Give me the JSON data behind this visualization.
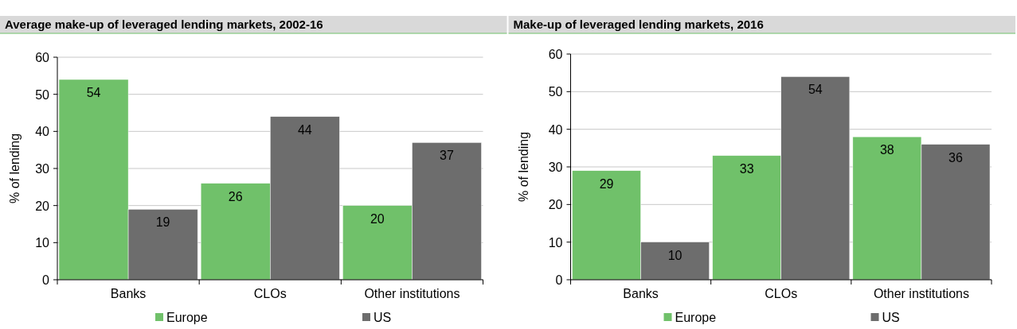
{
  "chart_data": [
    {
      "type": "bar",
      "title": "Average make-up of leveraged lending markets, 2002-16",
      "ylabel": "% of lending",
      "categories": [
        "Banks",
        "CLOs",
        "Other institutions"
      ],
      "series": [
        {
          "name": "Europe",
          "color": "#70c16a",
          "values": [
            54,
            26,
            20
          ]
        },
        {
          "name": "US",
          "color": "#6d6d6d",
          "values": [
            19,
            44,
            37
          ]
        }
      ],
      "ylim": [
        0,
        60
      ],
      "yticks": [
        0,
        10,
        20,
        30,
        40,
        50,
        60
      ],
      "grid": "y",
      "legend": "bottom",
      "data_labels": true
    },
    {
      "type": "bar",
      "title": "Make-up of leveraged lending markets, 2016",
      "ylabel": "% of lending",
      "categories": [
        "Banks",
        "CLOs",
        "Other institutions"
      ],
      "series": [
        {
          "name": "Europe",
          "color": "#70c16a",
          "values": [
            29,
            33,
            38
          ]
        },
        {
          "name": "US",
          "color": "#6d6d6d",
          "values": [
            10,
            54,
            36
          ]
        }
      ],
      "ylim": [
        0,
        60
      ],
      "yticks": [
        0,
        10,
        20,
        30,
        40,
        50,
        60
      ],
      "grid": "y",
      "legend": "bottom",
      "data_labels": true
    }
  ]
}
